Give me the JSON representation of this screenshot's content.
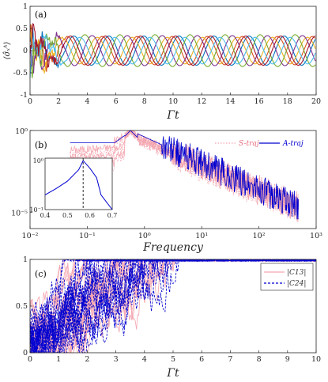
{
  "chart_data": [
    {
      "panel_label": "(a)",
      "type": "line",
      "xlabel": "Γt",
      "ylabel": "⟨σ̂ₓᴬ⟩",
      "xlim": [
        0,
        20
      ],
      "ylim": [
        -1,
        1
      ],
      "xticks": [
        "0",
        "2",
        "4",
        "6",
        "8",
        "10",
        "12",
        "14",
        "16",
        "18",
        "20"
      ],
      "yticks": [
        "-1",
        "-0.5",
        "0",
        "0.5",
        "1"
      ],
      "grid": false,
      "description": "Several sinusoidal trajectories (period ~2.4) that start noisy for t<2.5 and settle to amplitude ~0.33",
      "series": [
        {
          "color": "#0072bd",
          "amplitude": 0.33,
          "period": 2.45,
          "phase": 0.0
        },
        {
          "color": "#d95319",
          "amplitude": 0.32,
          "period": 2.45,
          "phase": 1.2
        },
        {
          "color": "#edb120",
          "amplitude": 0.3,
          "period": 2.45,
          "phase": 2.1
        },
        {
          "color": "#7e2f8e",
          "amplitude": 0.34,
          "period": 2.45,
          "phase": 3.0
        },
        {
          "color": "#77ac30",
          "amplitude": 0.36,
          "period": 2.45,
          "phase": 4.3
        },
        {
          "color": "#4dbeee",
          "amplitude": 0.3,
          "period": 2.45,
          "phase": 5.2
        },
        {
          "color": "#a2142f",
          "amplitude": 0.33,
          "period": 2.45,
          "phase": 0.6
        }
      ]
    },
    {
      "panel_label": "(b)",
      "type": "line",
      "xlabel": "Frequency",
      "xscale": "log",
      "yscale": "log",
      "xlim": [
        0.01,
        1000
      ],
      "ylim": [
        1e-06,
        1
      ],
      "xticks": [
        "10⁻²",
        "10⁻¹",
        "10⁰",
        "10¹",
        "10²",
        "10³"
      ],
      "yticks": [
        "10⁻⁵",
        "10⁰"
      ],
      "legend": {
        "position": "top-right",
        "entries": [
          {
            "label": "S-traj",
            "color": "#f4a6b0",
            "style": "dotted"
          },
          {
            "label": "A-traj",
            "color": "#0000d0",
            "style": "solid"
          }
        ]
      },
      "peak_frequency": 0.57,
      "inset": {
        "xlim": [
          0.4,
          0.7
        ],
        "xticks": [
          "0.4",
          "0.5",
          "0.6",
          "0.7"
        ],
        "yticks": [
          "10⁻¹",
          "10⁰"
        ],
        "marker_x": 0.57,
        "series": [
          {
            "x": [
              0.4,
              0.45,
              0.5,
              0.55,
              0.57,
              0.6,
              0.63,
              0.65,
              0.7
            ],
            "y": [
              0.2,
              0.27,
              0.38,
              0.65,
              1.0,
              0.7,
              0.45,
              0.2,
              0.1
            ]
          }
        ]
      }
    },
    {
      "panel_label": "(c)",
      "type": "line",
      "xlabel": "Γt",
      "xlim": [
        0,
        10
      ],
      "ylim": [
        0,
        1
      ],
      "xticks": [
        "0",
        "1",
        "2",
        "3",
        "4",
        "5",
        "6",
        "7",
        "8",
        "9",
        "10"
      ],
      "yticks": [
        "0",
        "0.5",
        "1"
      ],
      "legend": {
        "position": "top-right",
        "entries": [
          {
            "label": "|C13|",
            "color": "#f4a6b0",
            "style": "solid"
          },
          {
            "label": "|C24|",
            "color": "#0000d0",
            "style": "dashed"
          }
        ]
      },
      "description": "Many noisy trajectories rising from 0 to 1; most saturate by Γt≈4, all by Γt≈6"
    }
  ]
}
